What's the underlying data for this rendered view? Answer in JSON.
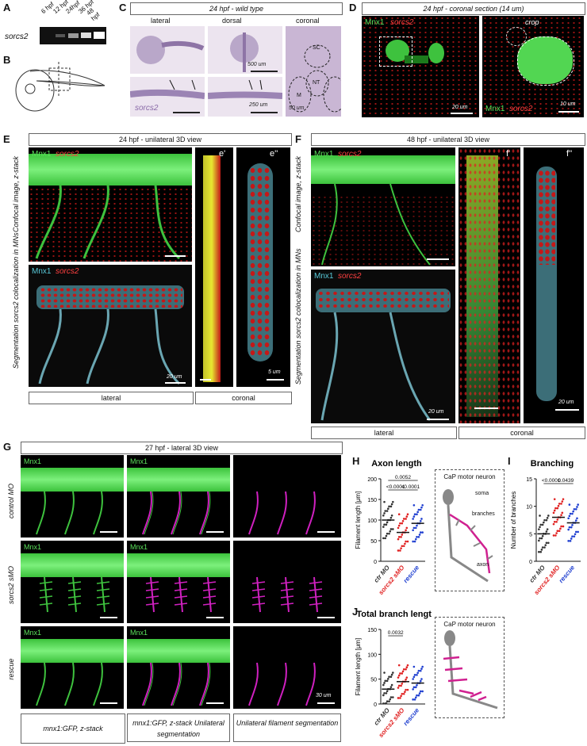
{
  "panels": {
    "A": {
      "letter": "A",
      "gene": "sorcs2",
      "lanes": [
        "6 hpf",
        "12 hpf",
        "24hpf",
        "36 hpf",
        "48 hpf"
      ]
    },
    "B": {
      "letter": "B"
    },
    "C": {
      "letter": "C",
      "title": "24 hpf - wild type",
      "views": [
        "lateral",
        "dorsal",
        "coronal"
      ],
      "gene": "sorcs2",
      "scale_a": "500 um",
      "scale_b": "250 um",
      "scale_c": "50 um",
      "regions": [
        "SC",
        "NT",
        "M"
      ]
    },
    "D": {
      "letter": "D",
      "title": "24 hpf - coronal section (14 um)",
      "crop": "crop",
      "marker": "Mnx1",
      "gene": "sorcs2",
      "scale_a": "20 um",
      "scale_b": "10 um"
    },
    "E": {
      "letter": "E",
      "title": "24 hpf - unilateral 3D view",
      "row1": "Confocal image, z-stack",
      "row2": "Segmentation sorcs2 colocalization in MNs",
      "marker": "Mnx1",
      "gene": "sorcs2",
      "sub1": "e'",
      "sub2": "e''",
      "scale_a": "20 um",
      "scale_b": "5 um",
      "footer_lateral": "lateral",
      "footer_coronal": "coronal"
    },
    "F": {
      "letter": "F",
      "title": "48 hpf - unilateral 3D view",
      "row1": "Confocal image, z-stack",
      "row2": "Segmentation sorcs2 colocalization in MNs",
      "marker": "Mnx1",
      "gene": "sorcs2",
      "sub1": "f'",
      "sub2": "f''",
      "scale_a": "20 um",
      "scale_b": "20 um",
      "footer_lateral": "lateral",
      "footer_coronal": "coronal"
    },
    "G": {
      "letter": "G",
      "title": "27 hpf - lateral 3D view",
      "rows": [
        "control MO",
        "sorcs2 sMO",
        "rescue"
      ],
      "marker": "Mnx1",
      "scale": "30 um",
      "footers": [
        "mnx1:GFP, z-stack",
        "mnx1:GFP, z-stack Unilateral segmentation",
        "Unilateral filament segmentation"
      ]
    },
    "H": {
      "letter": "H",
      "title": "Axon length",
      "ylabel": "Filament length [μm]",
      "pvals": [
        "0.0052",
        "<0.0001",
        "<0.0001"
      ]
    },
    "I": {
      "letter": "I",
      "title": "Branching",
      "ylabel": "Number of branches",
      "pvals": [
        "<0.0001",
        "0.0439"
      ]
    },
    "J": {
      "letter": "J",
      "title": "Total branch length",
      "ylabel": "Filament length [μm]",
      "pvals": [
        "0.0032"
      ]
    },
    "diagram": {
      "title": "CaP motor neuron",
      "soma": "soma",
      "branches": "branches",
      "axon": "axon"
    }
  },
  "chart_data": [
    {
      "type": "scatter",
      "panel": "H",
      "title": "Axon length",
      "ylabel": "Filament length [μm]",
      "categories": [
        "ctr MO",
        "sorcs2 sMO",
        "rescue"
      ],
      "yticks": [
        0,
        50,
        100,
        150,
        200
      ],
      "ylim": [
        0,
        200
      ],
      "colors": [
        "#333333",
        "#e02020",
        "#1f3fd0"
      ],
      "means": [
        100,
        70,
        92
      ]
    },
    {
      "type": "scatter",
      "panel": "I",
      "title": "Branching",
      "ylabel": "Number of branches",
      "categories": [
        "ctr MO",
        "sorcs2 sMO",
        "rescue"
      ],
      "yticks": [
        0,
        5,
        10,
        15
      ],
      "ylim": [
        0,
        15
      ],
      "colors": [
        "#333333",
        "#e02020",
        "#1f3fd0"
      ],
      "means": [
        5,
        8,
        7
      ]
    },
    {
      "type": "scatter",
      "panel": "J",
      "title": "Total branch length",
      "ylabel": "Filament length [μm]",
      "categories": [
        "ctr MO",
        "sorcs2 sMO",
        "rescue"
      ],
      "yticks": [
        0,
        50,
        100,
        150
      ],
      "ylim": [
        0,
        150
      ],
      "colors": [
        "#333333",
        "#e02020",
        "#1f3fd0"
      ],
      "means": [
        30,
        45,
        42
      ]
    }
  ]
}
